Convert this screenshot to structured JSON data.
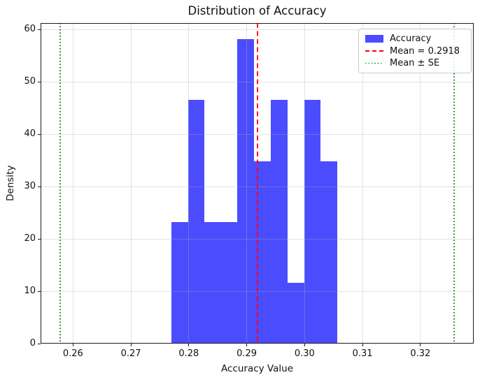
{
  "chart_data": {
    "type": "bar",
    "subtype": "histogram-density",
    "title": "Distribution of Accuracy",
    "xlabel": "Accuracy Value",
    "ylabel": "Density",
    "xlim": [
      0.2544,
      0.3292
    ],
    "ylim": [
      0,
      61.2
    ],
    "xticks": [
      0.26,
      0.27,
      0.28,
      0.29,
      0.3,
      0.31,
      0.32
    ],
    "xtick_labels": [
      "0.26",
      "0.27",
      "0.28",
      "0.29",
      "0.30",
      "0.31",
      "0.32"
    ],
    "yticks": [
      0,
      10,
      20,
      30,
      40,
      50,
      60
    ],
    "ytick_labels": [
      "0",
      "10",
      "20",
      "30",
      "40",
      "50",
      "60"
    ],
    "grid": true,
    "bin_edges": [
      0.277,
      0.2799,
      0.2827,
      0.2856,
      0.2884,
      0.2913,
      0.2941,
      0.297,
      0.2999,
      0.3027,
      0.3056
    ],
    "densities": [
      23.2,
      46.5,
      23.2,
      23.2,
      58.1,
      34.8,
      46.5,
      11.6,
      46.5,
      34.8
    ],
    "mean_line": {
      "value": 0.2918,
      "style": "dashed"
    },
    "se_lines": {
      "values": [
        0.2578,
        0.3258
      ],
      "style": "dotted"
    },
    "colors": {
      "bar": "#0000FF",
      "bar_opacity": 0.7,
      "mean_line": "#FF0000",
      "se_line": "#008000",
      "grid": "#B0B0B0"
    },
    "legend": {
      "position": "upper right",
      "items": [
        {
          "label": "Accuracy",
          "swatch": "patch-blue"
        },
        {
          "label": "Mean = 0.2918",
          "swatch": "line-red-dashed"
        },
        {
          "label": "Mean ± SE",
          "swatch": "line-green-dotted"
        }
      ]
    }
  }
}
